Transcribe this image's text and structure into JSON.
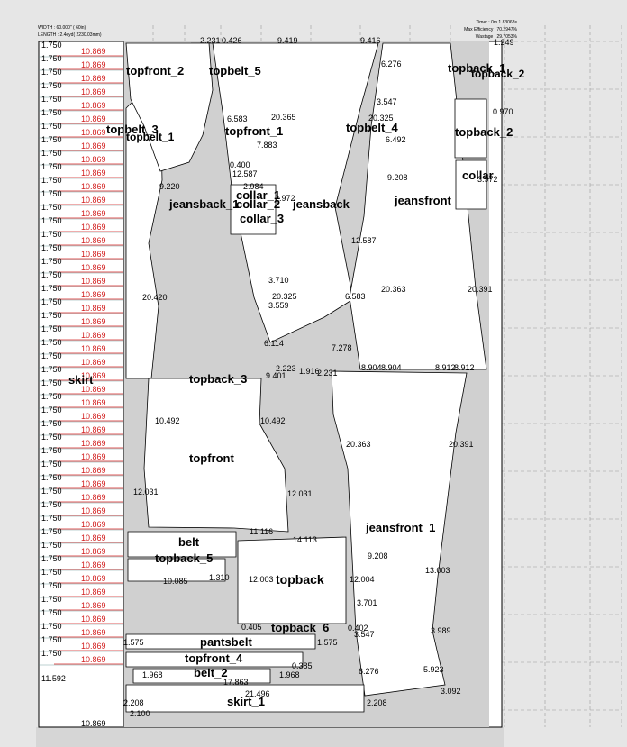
{
  "header": {
    "width_text": "WIDTH : 60.000\" ( 60in)",
    "length_text": "LENGTH : 2.4eyd( 2230.03mm)",
    "timer_text": "Timer : 0m 1.83068s",
    "efficiency_text": "Max Efficiency : 70.2947%",
    "waste_text": "Wastage : 29.7053%"
  },
  "colors": {
    "marker_bg": "#ffffff",
    "piece_fill": "#ffffff",
    "waste_fill": "#d0d0d0",
    "piece_stroke": "#000000",
    "red_line": "#d22020",
    "dash_line": "#9a9a9a",
    "page_bg": "#e6e6e6"
  },
  "left_column": {
    "row_label": "1.750",
    "row_value": "10.869",
    "row_count": 46,
    "bottom_left_label": "11.592",
    "bottom_value": "10.869"
  },
  "pieces": [
    {
      "label": "topfront_2",
      "size": 13
    },
    {
      "label": "topbelt_5",
      "size": 13
    },
    {
      "label": "topback_1",
      "size": 13
    },
    {
      "label": "topback_2",
      "size": 12
    },
    {
      "label": "topbelt_3",
      "size": 13
    },
    {
      "label": "topbelt_1",
      "size": 12
    },
    {
      "label": "topfront_1",
      "size": 13
    },
    {
      "label": "topbelt_4",
      "size": 13
    },
    {
      "label": "topback_2",
      "size": 13
    },
    {
      "label": "collar_1",
      "size": 13
    },
    {
      "label": "collar_2",
      "size": 13
    },
    {
      "label": "collar",
      "size": 13
    },
    {
      "label": "jeansback_1",
      "size": 13
    },
    {
      "label": "jeansback",
      "size": 13
    },
    {
      "label": "jeansfront",
      "size": 13
    },
    {
      "label": "collar_3",
      "size": 13
    },
    {
      "label": "skirt",
      "size": 13
    },
    {
      "label": "topback_3",
      "size": 13
    },
    {
      "label": "topfront",
      "size": 13
    },
    {
      "label": "jeansfront_1",
      "size": 13
    },
    {
      "label": "belt",
      "size": 13
    },
    {
      "label": "topback_5",
      "size": 13
    },
    {
      "label": "topback",
      "size": 14
    },
    {
      "label": "topback_6",
      "size": 13
    },
    {
      "label": "pantsbelt",
      "size": 13
    },
    {
      "label": "topfront_4",
      "size": 13
    },
    {
      "label": "belt_2",
      "size": 13
    },
    {
      "label": "skirt_1",
      "size": 13
    }
  ],
  "measurements": [
    "2.231",
    "0.426",
    "9.419",
    "9.416",
    "1.249",
    "6.276",
    "0.970",
    "6.583",
    "20.365",
    "20.325",
    "3.547",
    "6.492",
    "0.400",
    "12.587",
    "2.984",
    "2.972",
    "9.220",
    "9.208",
    "3.972",
    "12.587",
    "3.710",
    "3.559",
    "6.583",
    "20.420",
    "20.325",
    "20.363",
    "20.391",
    "6.114",
    "7.278",
    "8.904",
    "8.904",
    "8.912",
    "8.912",
    "2.223",
    "1.916",
    "2.231",
    "9.401",
    "10.492",
    "10.492",
    "20.363",
    "20.391",
    "12.031",
    "12.031",
    "11.116",
    "14.113",
    "9.208",
    "13.003",
    "12.003",
    "12.004",
    "10.085",
    "1.310",
    "3.701",
    "3.989",
    "0.405",
    "3.547",
    "0.402",
    "1.575",
    "1.575",
    "6.276",
    "5.923",
    "3.092",
    "1.968",
    "17.863",
    "21.496",
    "2.208",
    "2.208",
    "2.100",
    "1.968",
    "7.883",
    "0.385"
  ]
}
